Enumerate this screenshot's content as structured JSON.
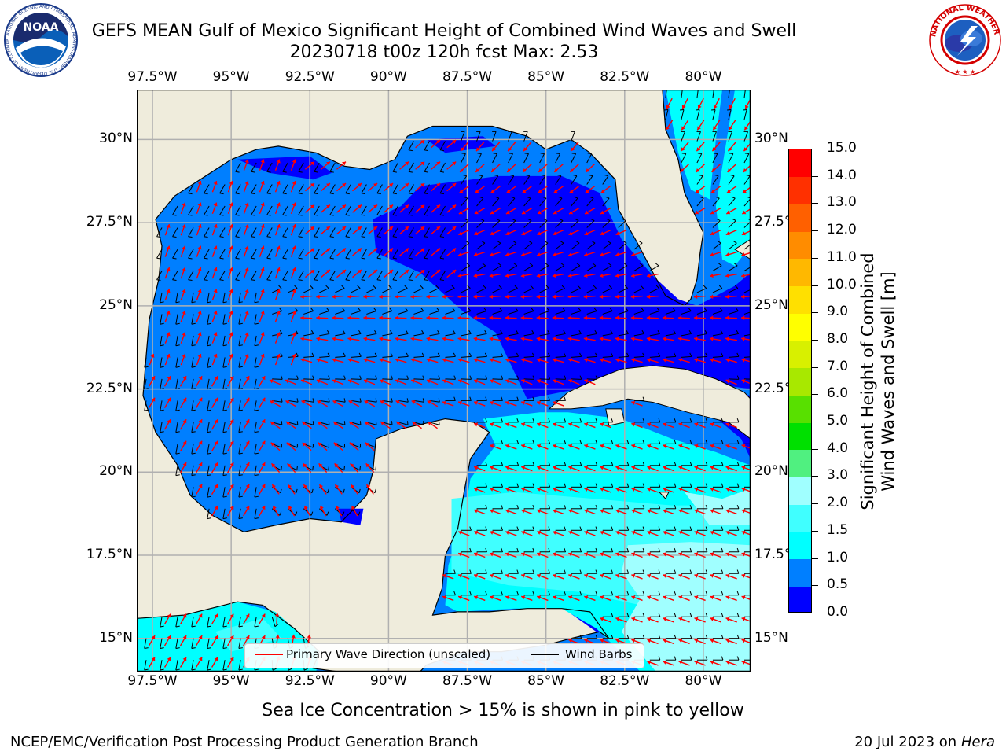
{
  "header": {
    "title_line1": "GEFS MEAN Gulf of Mexico Significant Height of Combined Wind Waves and Swell",
    "title_line2": "20230718 t00z 120h fcst   Max: 2.53"
  },
  "logos": {
    "noaa_text": "NOAA",
    "noaa_ring_text": "NATIONAL OCEANIC AND ATMOSPHERIC ADMINISTRATION · U.S. DEPARTMENT OF COMMERCE",
    "nws_ring_text": "NATIONAL WEATHER SERVICE"
  },
  "map": {
    "lon_labels": [
      "97.5°W",
      "95°W",
      "92.5°W",
      "90°W",
      "87.5°W",
      "85°W",
      "82.5°W",
      "80°W"
    ],
    "lat_labels_left": [
      "30°N",
      "27.5°N",
      "25°N",
      "22.5°N",
      "20°N",
      "17.5°N",
      "15°N"
    ],
    "lat_labels_right": [
      "30°N",
      "27.5°N",
      "25°N",
      "22.5°N",
      "20°N",
      "17.5°N",
      "15°N"
    ],
    "lon_range": [
      -98,
      -78.5
    ],
    "lat_range": [
      14,
      31.5
    ],
    "land_color": "#efecdc",
    "grid_color": "#b0b0b0",
    "arrow_color": "#ff0000",
    "barb_color": "#000000"
  },
  "legend": {
    "primary_wave_label": "Primary Wave Direction (unscaled)",
    "wind_barbs_label": "Wind Barbs"
  },
  "colorbar": {
    "title_line1": "Significant Height of Combined",
    "title_line2": "Wind Waves and Swell [m]",
    "tick_labels": [
      "15.0",
      "14.0",
      "13.0",
      "12.0",
      "11.0",
      "10.0",
      "9.0",
      "8.0",
      "7.0",
      "6.0",
      "5.0",
      "4.0",
      "3.0",
      "2.0",
      "1.5",
      "1.0",
      "0.5",
      "0.0"
    ],
    "levels": [
      0.0,
      0.5,
      1.0,
      1.5,
      2.0,
      3.0,
      4.0,
      5.0,
      6.0,
      7.0,
      8.0,
      9.0,
      10.0,
      11.0,
      12.0,
      13.0,
      14.0,
      15.0
    ],
    "colors": [
      "#0000ff",
      "#007fff",
      "#00ffff",
      "#40ffff",
      "#a0ffff",
      "#50f080",
      "#00e000",
      "#58e000",
      "#a8e800",
      "#d8f000",
      "#ffff00",
      "#ffe000",
      "#ffb800",
      "#ff8c00",
      "#ff6000",
      "#ff3000",
      "#ff0000"
    ]
  },
  "notes": {
    "ice_note": "Sea Ice Concentration > 15% is shown in pink to yellow"
  },
  "footer": {
    "left": "NCEP/EMC/Verification Post Processing Product Generation Branch",
    "right_date": "20 Jul 2023 on",
    "right_machine": "Hera"
  }
}
